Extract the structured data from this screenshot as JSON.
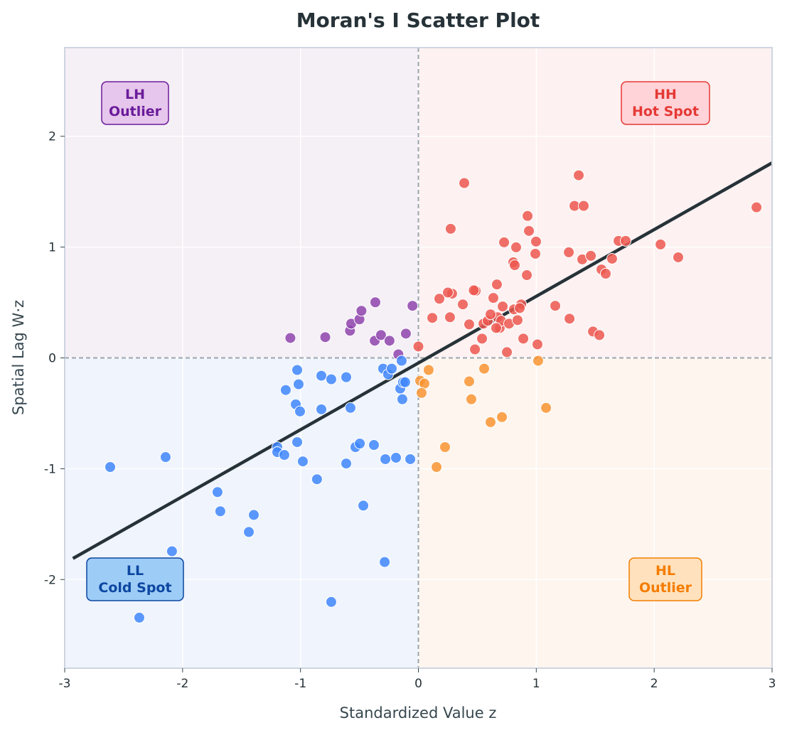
{
  "chart_data": {
    "type": "scatter",
    "title": "Moran's I Scatter Plot",
    "xlabel": "Standardized Value  z",
    "ylabel": "Spatial Lag  W·z",
    "xlim": [
      -3,
      3
    ],
    "ylim": [
      -2.8,
      2.8
    ],
    "xticks": [
      -3,
      -2,
      -1,
      0,
      1,
      2,
      3
    ],
    "yticks": [
      -2,
      -1,
      0,
      1,
      2
    ],
    "grid": true,
    "regression_line": {
      "slope": 0.602,
      "intercept": -0.046,
      "x_range": [
        -2.93,
        3.0
      ],
      "color": "#263238"
    },
    "quadrant_labels": [
      {
        "id": "HH",
        "line1": "HH",
        "line2": "Hot Spot",
        "position": "top-right",
        "color": "#e53935",
        "fill": "#ffd3d8",
        "bg": "#fdf1f1"
      },
      {
        "id": "LH",
        "line1": "LH",
        "line2": "Outlier",
        "position": "top-left",
        "color": "#6a1b9a",
        "fill": "#e6c6ec",
        "bg": "#f5eff6"
      },
      {
        "id": "LL",
        "line1": "LL",
        "line2": "Cold Spot",
        "position": "bottom-left",
        "color": "#0d47a1",
        "fill": "#9dccf6",
        "bg": "#eff4fd"
      },
      {
        "id": "HL",
        "line1": "HL",
        "line2": "Outlier",
        "position": "bottom-right",
        "color": "#f57c00",
        "fill": "#ffe2bd",
        "bg": "#fdf5ee"
      }
    ],
    "series": [
      {
        "id": "HH",
        "color": "#ec5850",
        "points": [
          [
            0.389,
            1.578
          ],
          [
            0.274,
            1.165
          ],
          [
            0.0,
            0.103
          ],
          [
            0.118,
            0.361
          ],
          [
            0.178,
            0.534
          ],
          [
            0.268,
            0.367
          ],
          [
            0.286,
            0.58
          ],
          [
            0.25,
            0.59
          ],
          [
            0.377,
            0.483
          ],
          [
            0.431,
            0.303
          ],
          [
            0.48,
            0.077
          ],
          [
            0.486,
            0.605
          ],
          [
            0.54,
            0.174
          ],
          [
            0.552,
            0.309
          ],
          [
            0.588,
            0.335
          ],
          [
            0.636,
            0.541
          ],
          [
            0.666,
            0.663
          ],
          [
            0.672,
            0.367
          ],
          [
            0.69,
            0.27
          ],
          [
            0.702,
            0.335
          ],
          [
            0.727,
            1.043
          ],
          [
            0.751,
            0.052
          ],
          [
            0.769,
            0.309
          ],
          [
            0.805,
            0.863
          ],
          [
            0.811,
            0.438
          ],
          [
            0.817,
            0.837
          ],
          [
            0.829,
            0.998
          ],
          [
            0.841,
            0.341
          ],
          [
            0.872,
            0.483
          ],
          [
            0.89,
            0.174
          ],
          [
            0.92,
            0.747
          ],
          [
            0.926,
            1.281
          ],
          [
            0.938,
            1.146
          ],
          [
            0.992,
            0.94
          ],
          [
            0.998,
            1.05
          ],
          [
            1.01,
            0.122
          ],
          [
            1.161,
            0.47
          ],
          [
            1.276,
            0.953
          ],
          [
            1.282,
            0.354
          ],
          [
            1.324,
            1.372
          ],
          [
            1.36,
            1.648
          ],
          [
            1.39,
            0.889
          ],
          [
            1.402,
            1.372
          ],
          [
            1.463,
            0.921
          ],
          [
            1.481,
            0.238
          ],
          [
            1.535,
            0.206
          ],
          [
            1.553,
            0.798
          ],
          [
            1.589,
            0.76
          ],
          [
            1.643,
            0.895
          ],
          [
            1.698,
            1.056
          ],
          [
            1.758,
            1.056
          ],
          [
            2.054,
            1.024
          ],
          [
            2.204,
            0.908
          ],
          [
            2.868,
            1.359
          ],
          [
            0.612,
            0.393
          ],
          [
            0.715,
            0.464
          ],
          [
            0.66,
            0.27
          ],
          [
            0.47,
            0.61
          ],
          [
            0.86,
            0.45
          ]
        ]
      },
      {
        "id": "LH",
        "color": "#8e44ad",
        "points": [
          [
            -1.086,
            0.18
          ],
          [
            -0.79,
            0.187
          ],
          [
            -0.58,
            0.245
          ],
          [
            -0.57,
            0.309
          ],
          [
            -0.5,
            0.348
          ],
          [
            -0.483,
            0.425
          ],
          [
            -0.365,
            0.502
          ],
          [
            -0.37,
            0.155
          ],
          [
            -0.317,
            0.206
          ],
          [
            -0.245,
            0.155
          ],
          [
            -0.106,
            0.219
          ],
          [
            -0.05,
            0.47
          ],
          [
            -0.17,
            0.032
          ]
        ]
      },
      {
        "id": "LL",
        "color": "#3f86fb",
        "points": [
          [
            -2.614,
            -0.985
          ],
          [
            -2.144,
            -0.895
          ],
          [
            -2.09,
            -1.745
          ],
          [
            -2.367,
            -2.344
          ],
          [
            -1.704,
            -1.211
          ],
          [
            -1.68,
            -1.384
          ],
          [
            -1.438,
            -1.571
          ],
          [
            -1.396,
            -1.417
          ],
          [
            -1.197,
            -0.805
          ],
          [
            -1.197,
            -0.85
          ],
          [
            -1.137,
            -0.876
          ],
          [
            -1.125,
            -0.29
          ],
          [
            -1.028,
            -0.109
          ],
          [
            -1.016,
            -0.238
          ],
          [
            -1.04,
            -0.419
          ],
          [
            -1.004,
            -0.483
          ],
          [
            -1.028,
            -0.76
          ],
          [
            -0.98,
            -0.934
          ],
          [
            -0.86,
            -1.095
          ],
          [
            -0.823,
            -0.161
          ],
          [
            -0.823,
            -0.464
          ],
          [
            -0.739,
            -0.193
          ],
          [
            -0.739,
            -2.202
          ],
          [
            -0.612,
            -0.174
          ],
          [
            -0.612,
            -0.953
          ],
          [
            -0.576,
            -0.451
          ],
          [
            -0.534,
            -0.805
          ],
          [
            -0.497,
            -0.773
          ],
          [
            -0.467,
            -1.333
          ],
          [
            -0.377,
            -0.786
          ],
          [
            -0.299,
            -0.097
          ],
          [
            -0.257,
            -0.148
          ],
          [
            -0.226,
            -0.097
          ],
          [
            -0.28,
            -0.914
          ],
          [
            -0.286,
            -1.842
          ],
          [
            -0.19,
            -0.901
          ],
          [
            -0.154,
            -0.277
          ],
          [
            -0.142,
            -0.026
          ],
          [
            -0.136,
            -0.373
          ],
          [
            -0.13,
            -0.219
          ],
          [
            -0.112,
            -0.219
          ],
          [
            -0.069,
            -0.914
          ]
        ]
      },
      {
        "id": "HL",
        "color": "#f99433",
        "points": [
          [
            0.087,
            -0.109
          ],
          [
            0.015,
            -0.206
          ],
          [
            0.051,
            -0.232
          ],
          [
            0.027,
            -0.316
          ],
          [
            0.226,
            -0.805
          ],
          [
            0.154,
            -0.985
          ],
          [
            0.431,
            -0.212
          ],
          [
            0.449,
            -0.373
          ],
          [
            0.558,
            -0.097
          ],
          [
            0.612,
            -0.58
          ],
          [
            0.709,
            -0.534
          ],
          [
            1.016,
            -0.026
          ],
          [
            1.083,
            -0.451
          ]
        ]
      }
    ]
  }
}
